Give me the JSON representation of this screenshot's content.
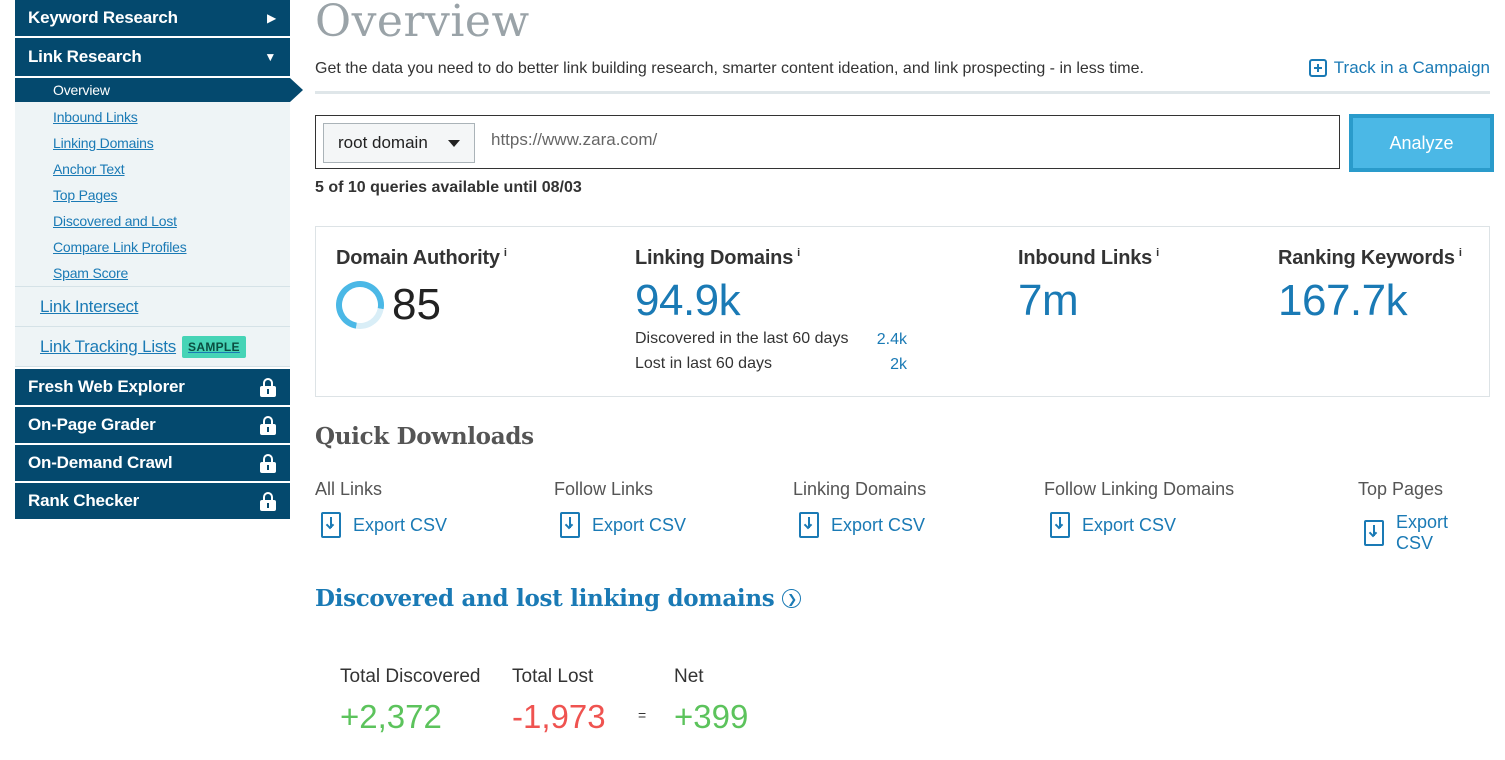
{
  "sidebar": {
    "keyword_research": "Keyword Research",
    "link_research": "Link Research",
    "link_research_items": [
      "Overview",
      "Inbound Links",
      "Linking Domains",
      "Anchor Text",
      "Top Pages",
      "Discovered and Lost",
      "Compare Link Profiles",
      "Spam Score"
    ],
    "link_intersect": "Link Intersect",
    "link_tracking_lists": "Link Tracking Lists",
    "sample_badge": "SAMPLE",
    "fresh_web_explorer": "Fresh Web Explorer",
    "on_page_grader": "On-Page Grader",
    "on_demand_crawl": "On-Demand Crawl",
    "rank_checker": "Rank Checker"
  },
  "page": {
    "title": "Overview",
    "subtitle": "Get the data you need to do better link building research, smarter content ideation, and link prospecting - in less time.",
    "track_campaign": "Track in a Campaign"
  },
  "search": {
    "scope": "root domain",
    "url": "https://www.zara.com/",
    "analyze": "Analyze",
    "quota": "5 of 10 queries available until 08/03"
  },
  "stats": {
    "domain_authority_label": "Domain Authority",
    "domain_authority_value": "85",
    "linking_domains_label": "Linking Domains",
    "linking_domains_value": "94.9k",
    "discovered_label": "Discovered in the last 60 days",
    "discovered_value": "2.4k",
    "lost_label": "Lost in last 60 days",
    "lost_value": "2k",
    "inbound_links_label": "Inbound Links",
    "inbound_links_value": "7m",
    "ranking_keywords_label": "Ranking Keywords",
    "ranking_keywords_value": "167.7k",
    "info_glyph": "i"
  },
  "quick_downloads": {
    "title": "Quick Downloads",
    "items": [
      {
        "label": "All Links",
        "action": "Export CSV"
      },
      {
        "label": "Follow Links",
        "action": "Export CSV"
      },
      {
        "label": "Linking Domains",
        "action": "Export CSV"
      },
      {
        "label": "Follow Linking Domains",
        "action": "Export CSV"
      },
      {
        "label": "Top Pages",
        "action": "Export CSV"
      }
    ]
  },
  "discovered_lost": {
    "title": "Discovered and lost linking domains",
    "total_discovered_label": "Total Discovered",
    "total_discovered_value": "+2,372",
    "total_lost_label": "Total Lost",
    "total_lost_value": "-1,973",
    "equals": "=",
    "net_label": "Net",
    "net_value": "+399"
  },
  "colors": {
    "nav_bg": "#04496e",
    "link_blue": "#1a7ab5",
    "analyze_bg": "#4bb8e6",
    "positive": "#5cc35c",
    "negative": "#ef5350",
    "badge": "#46d4b6"
  }
}
